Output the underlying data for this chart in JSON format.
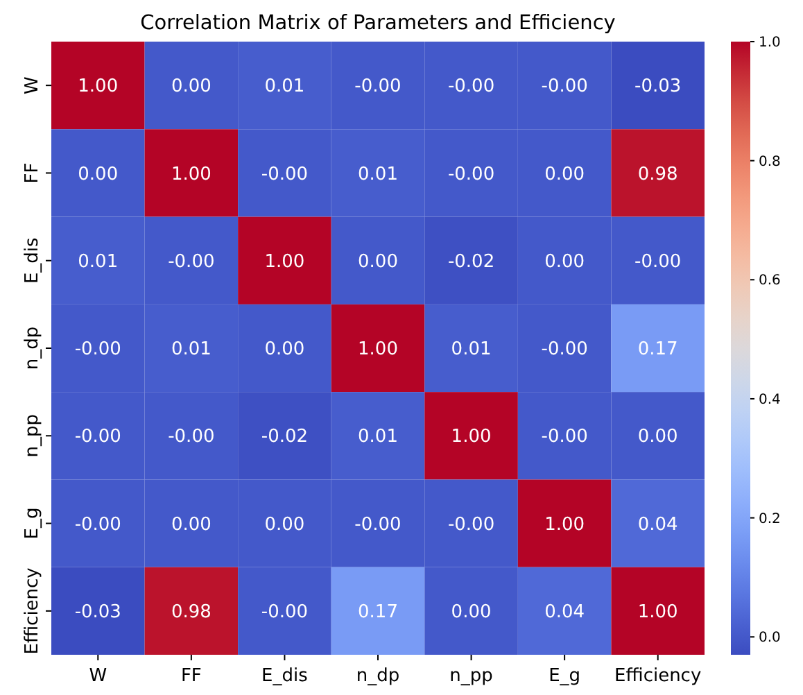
{
  "chart_data": {
    "type": "heatmap",
    "title": "Correlation Matrix of Parameters and Efficiency",
    "categories": [
      "W",
      "FF",
      "E_dis",
      "n_dp",
      "n_pp",
      "E_g",
      "Efficiency"
    ],
    "y_categories": [
      "W",
      "FF",
      "E_dis",
      "n_dp",
      "n_pp",
      "E_g",
      "Efficiency"
    ],
    "cells": [
      [
        1.0,
        0.0,
        0.01,
        0.0,
        0.0,
        0.0,
        -0.03
      ],
      [
        0.0,
        1.0,
        0.0,
        0.01,
        0.0,
        0.0,
        0.98
      ],
      [
        0.01,
        0.0,
        1.0,
        0.0,
        -0.02,
        0.0,
        0.0
      ],
      [
        0.0,
        0.01,
        0.0,
        1.0,
        0.01,
        0.0,
        0.17
      ],
      [
        0.0,
        0.0,
        -0.02,
        0.01,
        1.0,
        0.0,
        0.0
      ],
      [
        0.0,
        0.0,
        0.0,
        0.0,
        0.0,
        1.0,
        0.04
      ],
      [
        -0.03,
        0.98,
        0.0,
        0.17,
        0.0,
        0.04,
        1.0
      ]
    ],
    "cell_labels": [
      [
        "1.00",
        "0.00",
        "0.01",
        "-0.00",
        "-0.00",
        "-0.00",
        "-0.03"
      ],
      [
        "0.00",
        "1.00",
        "-0.00",
        "0.01",
        "-0.00",
        "0.00",
        "0.98"
      ],
      [
        "0.01",
        "-0.00",
        "1.00",
        "0.00",
        "-0.02",
        "0.00",
        "-0.00"
      ],
      [
        "-0.00",
        "0.01",
        "0.00",
        "1.00",
        "0.01",
        "-0.00",
        "0.17"
      ],
      [
        "-0.00",
        "-0.00",
        "-0.02",
        "0.01",
        "1.00",
        "-0.00",
        "0.00"
      ],
      [
        "-0.00",
        "0.00",
        "0.00",
        "-0.00",
        "-0.00",
        "1.00",
        "0.04"
      ],
      [
        "-0.03",
        "0.98",
        "-0.00",
        "0.17",
        "0.00",
        "0.04",
        "1.00"
      ]
    ],
    "clim": [
      -0.03,
      1.0
    ],
    "cticks": [
      {
        "value": 0,
        "label": "0.0"
      },
      {
        "value": 0.2,
        "label": "0.2"
      },
      {
        "value": 0.4,
        "label": "0.4"
      },
      {
        "value": 0.6,
        "label": "0.6"
      },
      {
        "value": 0.8,
        "label": "0.8"
      },
      {
        "value": 1,
        "label": "1.0"
      }
    ]
  }
}
